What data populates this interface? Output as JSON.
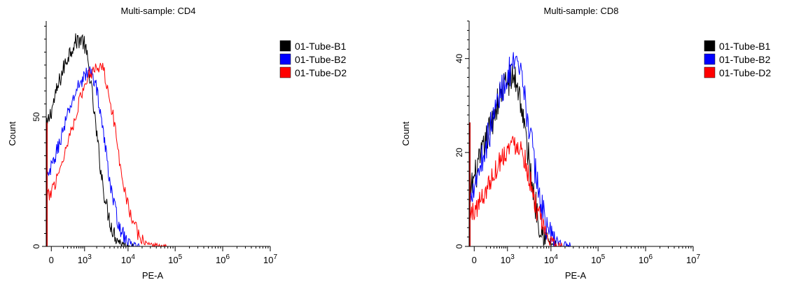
{
  "chart_data": [
    {
      "type": "histogram",
      "title": "Multi-sample: CD4",
      "xlabel": "PE-A",
      "ylabel": "Count",
      "x_scale": "biexponential",
      "xticks": [
        {
          "value": 0,
          "base": "0",
          "exp": ""
        },
        {
          "value": 1000,
          "base": "10",
          "exp": "3"
        },
        {
          "value": 10000,
          "base": "10",
          "exp": "4"
        },
        {
          "value": 100000,
          "base": "10",
          "exp": "5"
        },
        {
          "value": 1000000,
          "base": "10",
          "exp": "6"
        },
        {
          "value": 10000000,
          "base": "10",
          "exp": "7"
        }
      ],
      "yticks": [
        0,
        50
      ],
      "ylim": [
        0,
        87
      ],
      "legend_position": "right",
      "series": [
        {
          "name": "01-Tube-B1",
          "color": "#000000",
          "peak_x": 800,
          "peak_y": 80,
          "lo_y": 16,
          "rise": 1.05,
          "fall": 0.42,
          "noise": 3.5,
          "floor": 10,
          "cut": 9000
        },
        {
          "name": "01-Tube-B2",
          "color": "#0000ff",
          "peak_x": 1400,
          "peak_y": 67,
          "lo_y": 8,
          "rise": 1.05,
          "fall": 0.42,
          "noise": 3.0,
          "floor": 6,
          "cut": 12000
        },
        {
          "name": "01-Tube-D2",
          "color": "#ff0000",
          "peak_x": 2300,
          "peak_y": 70,
          "lo_y": 7,
          "rise": 1.05,
          "fall": 0.5,
          "noise": 3.0,
          "floor": 5,
          "cut": 45000
        }
      ]
    },
    {
      "type": "histogram",
      "title": "Multi-sample: CD8",
      "xlabel": "PE-A",
      "ylabel": "Count",
      "x_scale": "biexponential",
      "xticks": [
        {
          "value": 0,
          "base": "0",
          "exp": ""
        },
        {
          "value": 1000,
          "base": "10",
          "exp": "3"
        },
        {
          "value": 10000,
          "base": "10",
          "exp": "4"
        },
        {
          "value": 100000,
          "base": "10",
          "exp": "5"
        },
        {
          "value": 1000000,
          "base": "10",
          "exp": "6"
        },
        {
          "value": 10000000,
          "base": "10",
          "exp": "7"
        }
      ],
      "yticks": [
        0,
        20,
        40
      ],
      "ylim": [
        0,
        48
      ],
      "legend_position": "right",
      "series": [
        {
          "name": "01-Tube-B1",
          "color": "#000000",
          "peak_x": 1400,
          "peak_y": 36,
          "lo_y": 5,
          "rise": 0.95,
          "fall": 0.4,
          "noise": 3.5,
          "floor": 2,
          "cut": 9000
        },
        {
          "name": "01-Tube-B2",
          "color": "#0000ff",
          "peak_x": 1600,
          "peak_y": 38,
          "lo_y": 5,
          "rise": 0.95,
          "fall": 0.45,
          "noise": 3.5,
          "floor": 2,
          "cut": 18000
        },
        {
          "name": "01-Tube-D2",
          "color": "#ff0000",
          "peak_x": 1700,
          "peak_y": 22,
          "lo_y": 3,
          "rise": 0.95,
          "fall": 0.42,
          "noise": 2.5,
          "floor": 1,
          "cut": 12000
        }
      ]
    }
  ]
}
